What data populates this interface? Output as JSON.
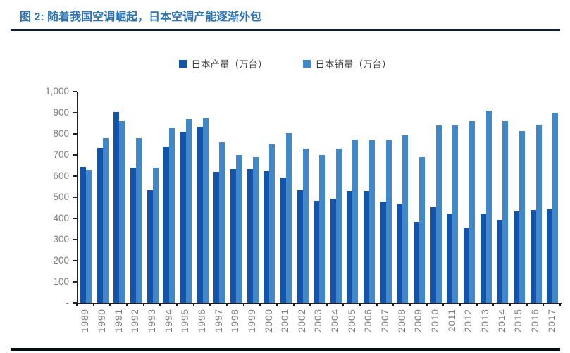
{
  "header": {
    "title": "图 2: 随着我国空调崛起，日本空调产能逐渐外包"
  },
  "chart_data": {
    "type": "bar",
    "title": "图 2: 随着我国空调崛起，日本空调产能逐渐外包",
    "categories": [
      "1989",
      "1990",
      "1991",
      "1992",
      "1993",
      "1994",
      "1995",
      "1996",
      "1997",
      "1998",
      "1999",
      "2000",
      "2001",
      "2002",
      "2003",
      "2004",
      "2005",
      "2006",
      "2007",
      "2008",
      "2009",
      "2010",
      "2011",
      "2012",
      "2013",
      "2014",
      "2015",
      "2016",
      "2017"
    ],
    "series": [
      {
        "name": "日本产量（万台）",
        "color": "#1353A9",
        "values": [
          645,
          735,
          905,
          640,
          535,
          740,
          810,
          835,
          620,
          635,
          635,
          625,
          595,
          535,
          485,
          495,
          530,
          530,
          480,
          470,
          385,
          455,
          420,
          355,
          420,
          395,
          435,
          440,
          445
        ]
      },
      {
        "name": "日本销量（万台）",
        "color": "#4188CB",
        "values": [
          630,
          780,
          860,
          780,
          640,
          830,
          870,
          875,
          760,
          700,
          690,
          750,
          805,
          730,
          700,
          730,
          775,
          770,
          770,
          795,
          690,
          840,
          840,
          860,
          910,
          860,
          815,
          845,
          900
        ]
      }
    ],
    "xlabel": "",
    "ylabel": "",
    "ylim": [
      0,
      1000
    ],
    "ytick_interval": 100,
    "ytick_labels": [
      "-",
      "100",
      "200",
      "300",
      "400",
      "500",
      "600",
      "700",
      "800",
      "900",
      "1,000"
    ],
    "grid": false,
    "legend_position": "top-center"
  },
  "colors": {
    "title_blue": "#2E74B5",
    "rule_dark": "#0E1B33",
    "axis": "#1F1F1F",
    "axis_label_gray": "#7F7F7F",
    "production_bar": "#1353A9",
    "sales_bar": "#4188CB"
  }
}
